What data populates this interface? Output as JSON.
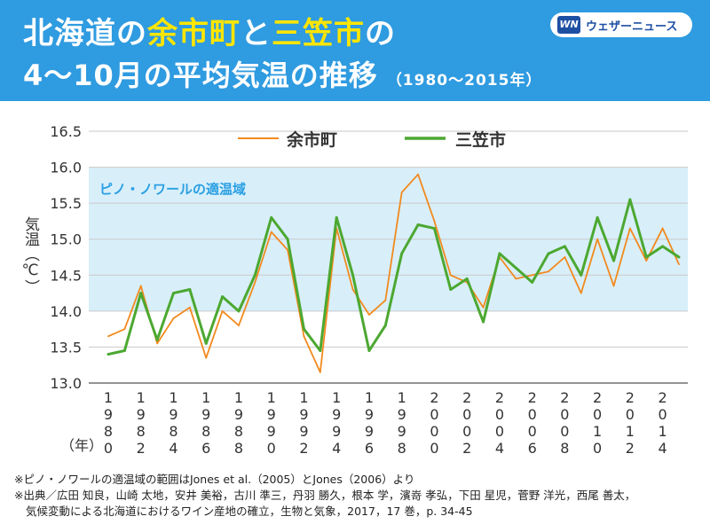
{
  "header": {
    "title_l1_a": "北海道の",
    "title_l1_b": "余市町",
    "title_l1_c": "と",
    "title_l1_d": "三笠市",
    "title_l1_e": "の",
    "title_l2": "4～10月の平均気温の推移",
    "title_sub": "（1980～2015年）",
    "logo_mark": "WN",
    "logo_text": "ウェザーニュース"
  },
  "colors": {
    "header_bg": "#2f9be0",
    "title_highlight": "#ffe600",
    "band": "#d8effa",
    "band_label": "#2a9fe3",
    "yoichi": "#f28a1e",
    "mikasa": "#4ca831"
  },
  "chart_data": {
    "type": "line",
    "ylabel": "気温（℃）",
    "xunit": "（年）",
    "ylim": [
      13.0,
      16.5
    ],
    "yticks": [
      "13.0",
      "13.5",
      "14.0",
      "14.5",
      "15.0",
      "15.5",
      "16.0",
      "16.5"
    ],
    "xticks": [
      "1980",
      "1982",
      "1984",
      "1986",
      "1988",
      "1990",
      "1992",
      "1994",
      "1996",
      "1998",
      "2000",
      "2002",
      "2004",
      "2006",
      "2008",
      "2010",
      "2012",
      "2014"
    ],
    "x": [
      1980,
      1981,
      1982,
      1983,
      1984,
      1985,
      1986,
      1987,
      1988,
      1989,
      1990,
      1991,
      1992,
      1993,
      1994,
      1995,
      1996,
      1997,
      1998,
      1999,
      2000,
      2001,
      2002,
      2003,
      2004,
      2005,
      2006,
      2007,
      2008,
      2009,
      2010,
      2011,
      2012,
      2013,
      2014,
      2015
    ],
    "band": {
      "from": 14.0,
      "to": 16.0,
      "label": "ピノ・ノワールの適温域"
    },
    "grid": "horizontal",
    "legend": "top",
    "series": [
      {
        "name": "余市町",
        "color": "#f28a1e",
        "values": [
          13.65,
          13.75,
          14.35,
          13.55,
          13.9,
          14.05,
          13.35,
          14.0,
          13.8,
          14.4,
          15.1,
          14.85,
          13.65,
          13.15,
          15.15,
          14.3,
          13.95,
          14.15,
          15.65,
          15.9,
          15.25,
          14.5,
          14.4,
          14.05,
          14.75,
          14.45,
          14.5,
          14.55,
          14.75,
          14.25,
          15.0,
          14.35,
          15.15,
          14.7,
          15.15,
          14.65
        ]
      },
      {
        "name": "三笠市",
        "color": "#4ca831",
        "values": [
          13.4,
          13.45,
          14.25,
          13.6,
          14.25,
          14.3,
          13.55,
          14.2,
          14.0,
          14.5,
          15.3,
          15.0,
          13.75,
          13.45,
          15.3,
          14.5,
          13.45,
          13.8,
          14.8,
          15.2,
          15.15,
          14.3,
          14.45,
          13.85,
          14.8,
          14.6,
          14.4,
          14.8,
          14.9,
          14.5,
          15.3,
          14.7,
          15.55,
          14.75,
          14.9,
          14.75
        ]
      }
    ]
  },
  "footnotes": [
    "※ピノ・ノワールの適温域の範囲はJones et al.（2005）とJones（2006）より",
    "※出典／広田 知良，山崎 太地，安井 美裕，古川 準三，丹羽 勝久，根本 学，濱嵜 孝弘，下田 星児，菅野 洋光，西尾 善太，",
    "気候変動による北海道におけるワイン産地の確立，生物と気象，2017，17 巻，p. 34-45"
  ]
}
